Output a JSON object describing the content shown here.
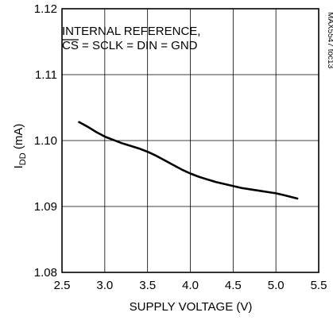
{
  "chart_data": {
    "type": "line",
    "annotation": {
      "line1": "INTERNAL REFERENCE,",
      "line2_overbar": "CS",
      "line2_rest": " = SCLK = DIN = GND"
    },
    "side_label": "MAX5547 toc13",
    "ylabel": {
      "main": "I",
      "sub": "DD",
      "unit": " (mA)"
    },
    "xlabel": "SUPPLY VOLTAGE (V)",
    "xlim": [
      2.5,
      5.5
    ],
    "ylim": [
      1.08,
      1.12
    ],
    "xticks": [
      2.5,
      3.0,
      3.5,
      4.0,
      4.5,
      5.0,
      5.5
    ],
    "xtick_labels": [
      "2.5",
      "3.0",
      "3.5",
      "4.0",
      "4.5",
      "5.0",
      "5.5"
    ],
    "yticks": [
      1.08,
      1.09,
      1.1,
      1.11,
      1.12
    ],
    "ytick_labels": [
      "1.08",
      "1.09",
      "1.10",
      "1.11",
      "1.12"
    ],
    "grid": true,
    "series": [
      {
        "x": [
          2.7,
          2.8,
          2.9,
          3.0,
          3.1,
          3.2,
          3.3,
          3.4,
          3.5,
          3.6,
          3.7,
          3.8,
          3.9,
          4.0,
          4.1,
          4.2,
          4.3,
          4.4,
          4.5,
          4.6,
          4.7,
          4.8,
          4.9,
          5.0,
          5.1,
          5.25
        ],
        "y": [
          1.1028,
          1.1021,
          1.1013,
          1.1006,
          1.1001,
          1.0996,
          1.0992,
          1.0988,
          1.0983,
          1.0977,
          1.097,
          1.0963,
          1.0956,
          1.095,
          1.0945,
          1.0941,
          1.0937,
          1.0934,
          1.0931,
          1.0928,
          1.0926,
          1.0924,
          1.0922,
          1.092,
          1.0917,
          1.0912
        ]
      }
    ],
    "colors": {
      "line": "#000000",
      "grid": "#000000",
      "background": "#ffffff"
    }
  }
}
